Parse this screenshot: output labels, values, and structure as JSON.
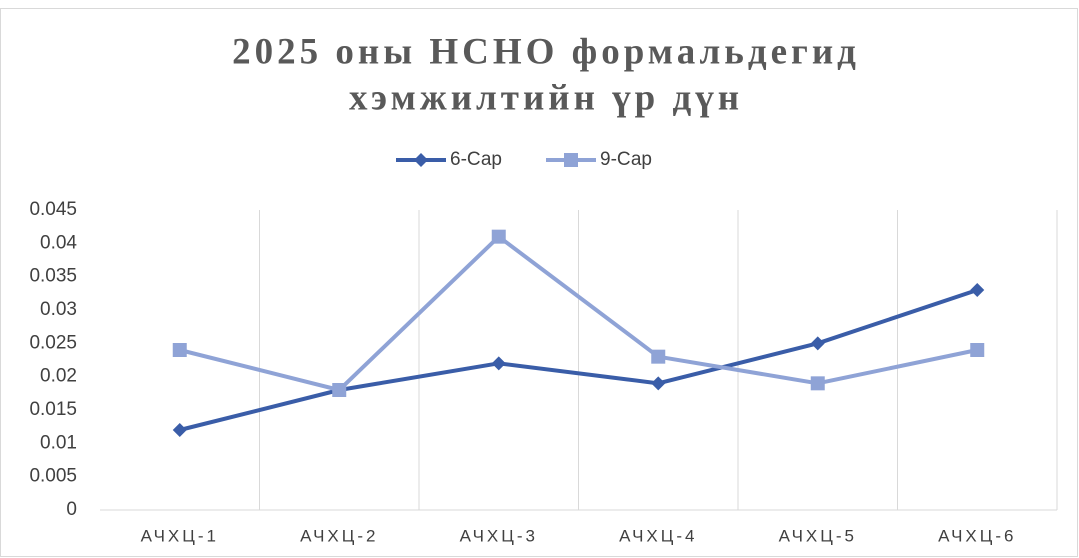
{
  "chart_data": {
    "type": "line",
    "title": [
      "2025 оны НСНО формальдегид",
      "хэмжилтийн үр дүн"
    ],
    "categories": [
      "АЧХЦ-1",
      "АЧХЦ-2",
      "АЧХЦ-3",
      "АЧХЦ-4",
      "АЧХЦ-5",
      "АЧХЦ-6"
    ],
    "series": [
      {
        "name": "6-Сар",
        "color": "#3a5da8",
        "marker": "diamond",
        "values": [
          0.012,
          0.018,
          0.022,
          0.019,
          0.025,
          0.033
        ]
      },
      {
        "name": "9-Сар",
        "color": "#8fa3d6",
        "marker": "square",
        "values": [
          0.024,
          0.018,
          0.041,
          0.023,
          0.019,
          0.024
        ]
      }
    ],
    "ylim": [
      0,
      0.045
    ],
    "yticks": [
      0,
      0.005,
      0.01,
      0.015,
      0.02,
      0.025,
      0.03,
      0.035,
      0.04,
      0.045
    ],
    "grid": "x",
    "legend": "top"
  }
}
